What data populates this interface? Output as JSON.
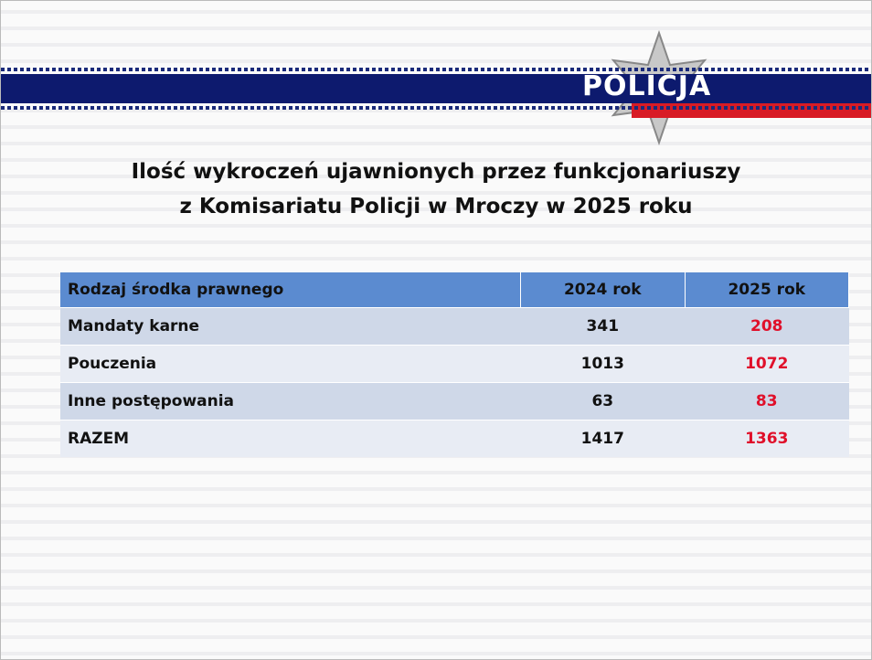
{
  "header": {
    "logo": "POLICJA"
  },
  "title": {
    "line1": "Ilość wykroczeń ujawnionych przez funkcjonariuszy",
    "line2": "z Komisariatu Policji w Mroczy w 2025 roku"
  },
  "table": {
    "columns": [
      "Rodzaj środka prawnego",
      "2024 rok",
      "2025 rok"
    ],
    "rows": [
      [
        "Mandaty karne",
        341,
        208
      ],
      [
        "Pouczenia",
        1013,
        1072
      ],
      [
        "Inne postępowania",
        63,
        83
      ],
      [
        "RAZEM",
        1417,
        1363
      ]
    ]
  }
}
